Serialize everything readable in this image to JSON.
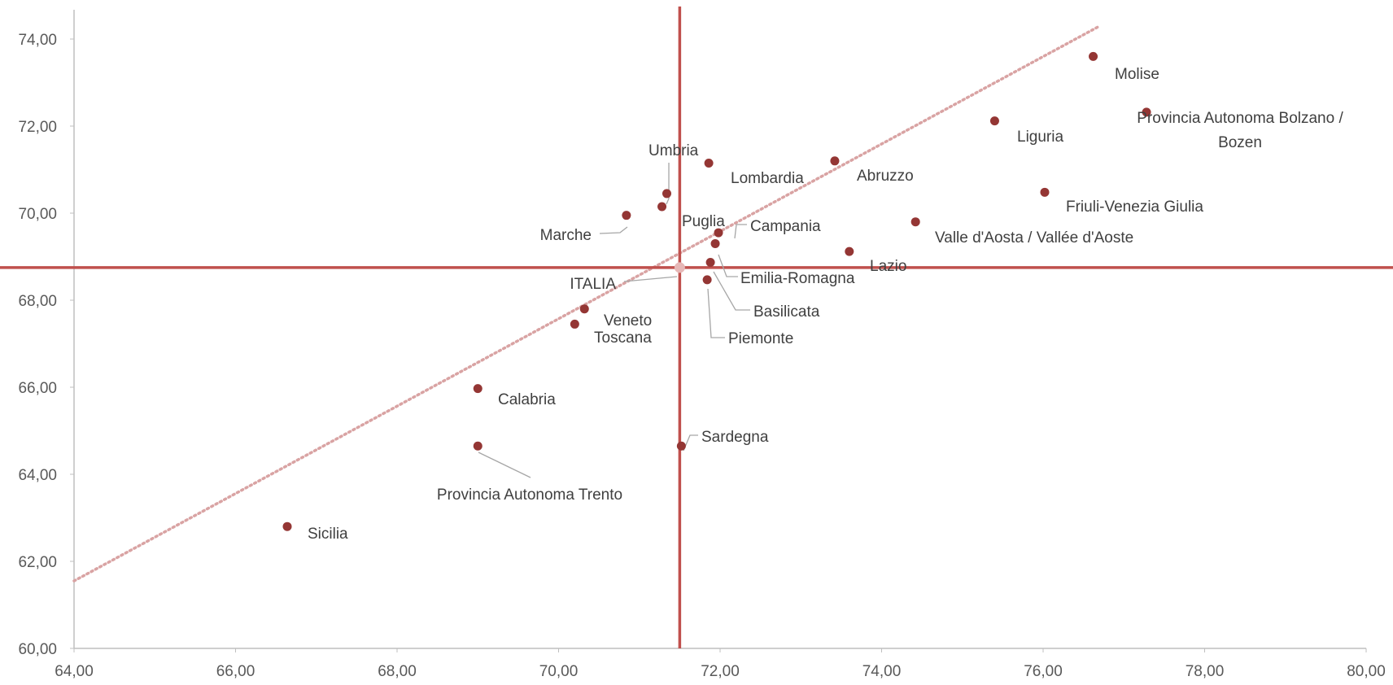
{
  "chart_data": {
    "type": "scatter",
    "title": "",
    "xlabel": "",
    "ylabel": "",
    "xlim": [
      64,
      80
    ],
    "ylim": [
      60,
      74.5
    ],
    "x_ticks": [
      "64,00",
      "66,00",
      "68,00",
      "70,00",
      "72,00",
      "74,00",
      "76,00",
      "78,00",
      "80,00"
    ],
    "y_ticks": [
      "60,00",
      "62,00",
      "64,00",
      "66,00",
      "68,00",
      "70,00",
      "72,00",
      "74,00"
    ],
    "grid": false,
    "reference_lines": {
      "vertical_x": 71.5,
      "horizontal_y": 68.75
    },
    "trendline": {
      "style": "dotted",
      "from": [
        64,
        61.55
      ],
      "to": [
        76.7,
        74.3
      ]
    },
    "colors": {
      "point": "#943634",
      "reference_line": "#c0504d",
      "trendline": "#d9a3a3",
      "italia_point": "#e6b8b7",
      "leader_line": "#a6a6a6",
      "axis": "#bfbfbf"
    },
    "points": [
      {
        "label": "Molise",
        "x": 76.62,
        "y": 73.6
      },
      {
        "label": "Provincia Autonoma Bolzano / Bozen",
        "label_lines": [
          "Provincia Autonoma Bolzano /",
          "Bozen"
        ],
        "x": 77.28,
        "y": 72.32
      },
      {
        "label": "Liguria",
        "x": 75.4,
        "y": 72.12
      },
      {
        "label": "Abruzzo",
        "x": 73.42,
        "y": 71.2
      },
      {
        "label": "Lombardia",
        "x": 71.86,
        "y": 71.15
      },
      {
        "label": "Friuli-Venezia Giulia",
        "x": 76.02,
        "y": 70.48
      },
      {
        "label": "Umbria",
        "x": 71.34,
        "y": 70.45
      },
      {
        "label": "Puglia",
        "x": 71.28,
        "y": 70.15
      },
      {
        "label": "Marche",
        "x": 70.84,
        "y": 69.95
      },
      {
        "label": "Valle d'Aosta / Vallée d'Aoste",
        "x": 74.42,
        "y": 69.8
      },
      {
        "label": "Campania",
        "x": 71.98,
        "y": 69.55
      },
      {
        "label": "Emilia-Romagna",
        "x": 71.94,
        "y": 69.3
      },
      {
        "label": "Lazio",
        "x": 73.6,
        "y": 69.12
      },
      {
        "label": "Basilicata",
        "x": 71.88,
        "y": 68.87
      },
      {
        "label": "ITALIA",
        "x": 71.5,
        "y": 68.75
      },
      {
        "label": "Piemonte",
        "x": 71.84,
        "y": 68.47
      },
      {
        "label": "Veneto",
        "x": 70.32,
        "y": 67.8
      },
      {
        "label": "Toscana",
        "x": 70.2,
        "y": 67.45
      },
      {
        "label": "Calabria",
        "x": 69.0,
        "y": 65.97
      },
      {
        "label": "Provincia Autonoma Trento",
        "x": 69.0,
        "y": 64.65
      },
      {
        "label": "Sardegna",
        "x": 71.52,
        "y": 64.65
      },
      {
        "label": "Sicilia",
        "x": 66.64,
        "y": 62.8
      }
    ]
  }
}
